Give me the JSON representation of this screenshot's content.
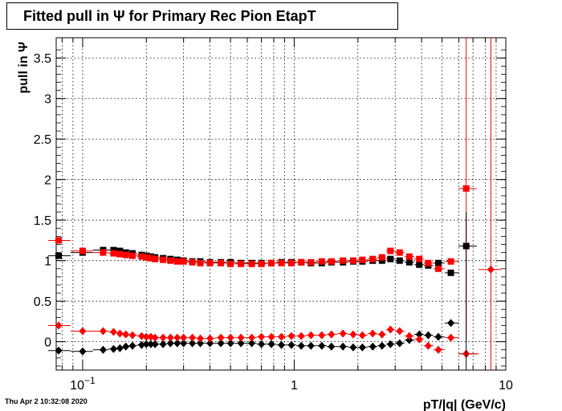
{
  "title": "Fitted pull in  Ψ  for Primary Rec Pion EtapT",
  "timestamp": "Thu Apr  2 10:32:08 2020",
  "colors": {
    "black_series": "#000000",
    "red_series": "#ff0000",
    "grid": "#000000"
  },
  "chart_data": {
    "type": "scatter",
    "title": "Fitted pull in  Ψ  for Primary Rec Pion EtapT",
    "xlabel": "pT/|q| (GeV/c)",
    "ylabel": "pull in  Ψ",
    "xscale": "log",
    "xlim": [
      0.075,
      10
    ],
    "ylim": [
      -0.35,
      3.75
    ],
    "grid": true,
    "x_ticks": [
      {
        "value": 0.1,
        "base": "10",
        "exp": "−1"
      },
      {
        "value": 1,
        "label": "1"
      },
      {
        "value": 10,
        "label": "10"
      }
    ],
    "y_ticks": [
      {
        "value": 0,
        "label": "0"
      },
      {
        "value": 0.5,
        "label": "0.5"
      },
      {
        "value": 1,
        "label": "1"
      },
      {
        "value": 1.5,
        "label": "1.5"
      },
      {
        "value": 2,
        "label": "2"
      },
      {
        "value": 2.5,
        "label": "2.5"
      },
      {
        "value": 3,
        "label": "3"
      },
      {
        "value": 3.5,
        "label": "3.5"
      }
    ],
    "series": [
      {
        "color": "#000000",
        "marker": "square",
        "points": [
          {
            "x": 0.077,
            "y": 1.06
          },
          {
            "x": 0.1,
            "y": 1.1
          },
          {
            "x": 0.125,
            "y": 1.13
          },
          {
            "x": 0.14,
            "y": 1.13
          },
          {
            "x": 0.15,
            "y": 1.12
          },
          {
            "x": 0.16,
            "y": 1.1
          },
          {
            "x": 0.172,
            "y": 1.09
          },
          {
            "x": 0.19,
            "y": 1.07
          },
          {
            "x": 0.2,
            "y": 1.06
          },
          {
            "x": 0.21,
            "y": 1.05
          },
          {
            "x": 0.22,
            "y": 1.04
          },
          {
            "x": 0.24,
            "y": 1.03
          },
          {
            "x": 0.26,
            "y": 1.02
          },
          {
            "x": 0.28,
            "y": 1.01
          },
          {
            "x": 0.3,
            "y": 1.0
          },
          {
            "x": 0.33,
            "y": 0.99
          },
          {
            "x": 0.36,
            "y": 0.99
          },
          {
            "x": 0.4,
            "y": 0.98
          },
          {
            "x": 0.45,
            "y": 0.98
          },
          {
            "x": 0.5,
            "y": 0.98
          },
          {
            "x": 0.56,
            "y": 0.97
          },
          {
            "x": 0.63,
            "y": 0.97
          },
          {
            "x": 0.7,
            "y": 0.97
          },
          {
            "x": 0.78,
            "y": 0.97
          },
          {
            "x": 0.87,
            "y": 0.98
          },
          {
            "x": 0.97,
            "y": 0.98
          },
          {
            "x": 1.08,
            "y": 0.98
          },
          {
            "x": 1.2,
            "y": 0.97
          },
          {
            "x": 1.35,
            "y": 0.97
          },
          {
            "x": 1.5,
            "y": 0.98
          },
          {
            "x": 1.7,
            "y": 0.98
          },
          {
            "x": 1.9,
            "y": 0.99
          },
          {
            "x": 2.1,
            "y": 0.99
          },
          {
            "x": 2.35,
            "y": 1.0
          },
          {
            "x": 2.6,
            "y": 1.0
          },
          {
            "x": 2.85,
            "y": 1.02
          },
          {
            "x": 3.15,
            "y": 1.0
          },
          {
            "x": 3.5,
            "y": 0.98
          },
          {
            "x": 3.9,
            "y": 0.95
          },
          {
            "x": 4.3,
            "y": 0.94
          },
          {
            "x": 4.8,
            "y": 0.97
          },
          {
            "x": 5.5,
            "y": 0.85
          },
          {
            "x": 6.5,
            "y": 1.18
          }
        ]
      },
      {
        "color": "#ff0000",
        "marker": "square",
        "points": [
          {
            "x": 0.077,
            "y": 1.25
          },
          {
            "x": 0.1,
            "y": 1.12
          },
          {
            "x": 0.125,
            "y": 1.1
          },
          {
            "x": 0.14,
            "y": 1.09
          },
          {
            "x": 0.15,
            "y": 1.08
          },
          {
            "x": 0.16,
            "y": 1.07
          },
          {
            "x": 0.172,
            "y": 1.06
          },
          {
            "x": 0.19,
            "y": 1.05
          },
          {
            "x": 0.2,
            "y": 1.04
          },
          {
            "x": 0.21,
            "y": 1.03
          },
          {
            "x": 0.22,
            "y": 1.02
          },
          {
            "x": 0.24,
            "y": 1.01
          },
          {
            "x": 0.26,
            "y": 1.0
          },
          {
            "x": 0.28,
            "y": 0.99
          },
          {
            "x": 0.3,
            "y": 0.99
          },
          {
            "x": 0.33,
            "y": 0.98
          },
          {
            "x": 0.36,
            "y": 0.97
          },
          {
            "x": 0.4,
            "y": 0.97
          },
          {
            "x": 0.45,
            "y": 0.97
          },
          {
            "x": 0.5,
            "y": 0.96
          },
          {
            "x": 0.56,
            "y": 0.96
          },
          {
            "x": 0.63,
            "y": 0.96
          },
          {
            "x": 0.7,
            "y": 0.96
          },
          {
            "x": 0.78,
            "y": 0.97
          },
          {
            "x": 0.87,
            "y": 0.97
          },
          {
            "x": 0.97,
            "y": 0.97
          },
          {
            "x": 1.08,
            "y": 0.98
          },
          {
            "x": 1.2,
            "y": 0.98
          },
          {
            "x": 1.35,
            "y": 0.99
          },
          {
            "x": 1.5,
            "y": 0.99
          },
          {
            "x": 1.7,
            "y": 1.0
          },
          {
            "x": 1.9,
            "y": 1.0
          },
          {
            "x": 2.1,
            "y": 1.01
          },
          {
            "x": 2.35,
            "y": 1.02
          },
          {
            "x": 2.6,
            "y": 1.04
          },
          {
            "x": 2.85,
            "y": 1.12
          },
          {
            "x": 3.15,
            "y": 1.1
          },
          {
            "x": 3.5,
            "y": 1.05
          },
          {
            "x": 3.9,
            "y": 1.02
          },
          {
            "x": 4.3,
            "y": 0.97
          },
          {
            "x": 4.8,
            "y": 0.9
          },
          {
            "x": 5.5,
            "y": 0.99
          },
          {
            "x": 6.5,
            "y": 1.89
          }
        ]
      },
      {
        "color": "#000000",
        "marker": "diamond",
        "points": [
          {
            "x": 0.077,
            "y": -0.11
          },
          {
            "x": 0.1,
            "y": -0.12
          },
          {
            "x": 0.125,
            "y": -0.1
          },
          {
            "x": 0.14,
            "y": -0.09
          },
          {
            "x": 0.15,
            "y": -0.08
          },
          {
            "x": 0.16,
            "y": -0.06
          },
          {
            "x": 0.172,
            "y": -0.05
          },
          {
            "x": 0.19,
            "y": -0.04
          },
          {
            "x": 0.2,
            "y": -0.03
          },
          {
            "x": 0.21,
            "y": -0.03
          },
          {
            "x": 0.22,
            "y": -0.03
          },
          {
            "x": 0.24,
            "y": -0.03
          },
          {
            "x": 0.26,
            "y": -0.02
          },
          {
            "x": 0.28,
            "y": -0.02
          },
          {
            "x": 0.3,
            "y": -0.02
          },
          {
            "x": 0.33,
            "y": -0.02
          },
          {
            "x": 0.36,
            "y": -0.02
          },
          {
            "x": 0.4,
            "y": -0.02
          },
          {
            "x": 0.45,
            "y": -0.02
          },
          {
            "x": 0.5,
            "y": -0.02
          },
          {
            "x": 0.56,
            "y": -0.02
          },
          {
            "x": 0.63,
            "y": -0.02
          },
          {
            "x": 0.7,
            "y": -0.03
          },
          {
            "x": 0.78,
            "y": -0.03
          },
          {
            "x": 0.87,
            "y": -0.04
          },
          {
            "x": 0.97,
            "y": -0.04
          },
          {
            "x": 1.08,
            "y": -0.05
          },
          {
            "x": 1.2,
            "y": -0.05
          },
          {
            "x": 1.35,
            "y": -0.05
          },
          {
            "x": 1.5,
            "y": -0.06
          },
          {
            "x": 1.7,
            "y": -0.06
          },
          {
            "x": 1.9,
            "y": -0.07
          },
          {
            "x": 2.1,
            "y": -0.07
          },
          {
            "x": 2.35,
            "y": -0.06
          },
          {
            "x": 2.6,
            "y": -0.05
          },
          {
            "x": 2.85,
            "y": -0.03
          },
          {
            "x": 3.15,
            "y": -0.02
          },
          {
            "x": 3.5,
            "y": 0.02
          },
          {
            "x": 3.9,
            "y": 0.09
          },
          {
            "x": 4.3,
            "y": 0.08
          },
          {
            "x": 4.8,
            "y": 0.06
          },
          {
            "x": 5.5,
            "y": 0.23
          },
          {
            "x": 6.5,
            "y": -0.15
          }
        ]
      },
      {
        "color": "#ff0000",
        "marker": "diamond",
        "points": [
          {
            "x": 0.077,
            "y": 0.2
          },
          {
            "x": 0.1,
            "y": 0.13
          },
          {
            "x": 0.125,
            "y": 0.13
          },
          {
            "x": 0.14,
            "y": 0.12
          },
          {
            "x": 0.15,
            "y": 0.1
          },
          {
            "x": 0.16,
            "y": 0.09
          },
          {
            "x": 0.172,
            "y": 0.08
          },
          {
            "x": 0.19,
            "y": 0.07
          },
          {
            "x": 0.2,
            "y": 0.06
          },
          {
            "x": 0.21,
            "y": 0.06
          },
          {
            "x": 0.22,
            "y": 0.05
          },
          {
            "x": 0.24,
            "y": 0.05
          },
          {
            "x": 0.26,
            "y": 0.05
          },
          {
            "x": 0.28,
            "y": 0.05
          },
          {
            "x": 0.3,
            "y": 0.05
          },
          {
            "x": 0.33,
            "y": 0.05
          },
          {
            "x": 0.36,
            "y": 0.04
          },
          {
            "x": 0.4,
            "y": 0.04
          },
          {
            "x": 0.45,
            "y": 0.05
          },
          {
            "x": 0.5,
            "y": 0.05
          },
          {
            "x": 0.56,
            "y": 0.05
          },
          {
            "x": 0.63,
            "y": 0.05
          },
          {
            "x": 0.7,
            "y": 0.06
          },
          {
            "x": 0.78,
            "y": 0.06
          },
          {
            "x": 0.87,
            "y": 0.06
          },
          {
            "x": 0.97,
            "y": 0.07
          },
          {
            "x": 1.08,
            "y": 0.07
          },
          {
            "x": 1.2,
            "y": 0.08
          },
          {
            "x": 1.35,
            "y": 0.08
          },
          {
            "x": 1.5,
            "y": 0.09
          },
          {
            "x": 1.7,
            "y": 0.1
          },
          {
            "x": 1.9,
            "y": 0.09
          },
          {
            "x": 2.1,
            "y": 0.08
          },
          {
            "x": 2.35,
            "y": 0.1
          },
          {
            "x": 2.6,
            "y": 0.09
          },
          {
            "x": 2.85,
            "y": 0.15
          },
          {
            "x": 3.15,
            "y": 0.13
          },
          {
            "x": 3.5,
            "y": 0.07
          },
          {
            "x": 3.9,
            "y": 0.03
          },
          {
            "x": 4.3,
            "y": -0.05
          },
          {
            "x": 4.8,
            "y": -0.1
          },
          {
            "x": 5.5,
            "y": 0.05
          },
          {
            "x": 6.5,
            "y": -0.15
          },
          {
            "x": 8.5,
            "y": 0.89
          }
        ]
      }
    ]
  }
}
